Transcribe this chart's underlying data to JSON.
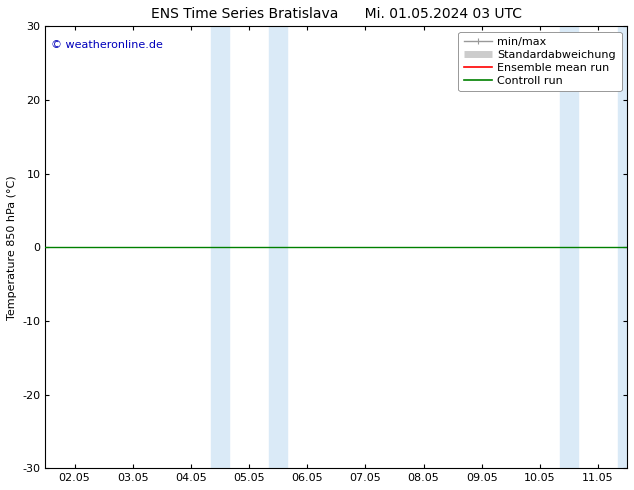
{
  "title_left": "ENS Time Series Bratislava",
  "title_right": "Mi. 01.05.2024 03 UTC",
  "ylabel": "Temperature 850 hPa (°C)",
  "copyright": "© weatheronline.de",
  "ylim": [
    -30,
    30
  ],
  "yticks": [
    -30,
    -20,
    -10,
    0,
    10,
    20,
    30
  ],
  "x_labels": [
    "02.05",
    "03.05",
    "04.05",
    "05.05",
    "06.05",
    "07.05",
    "08.05",
    "09.05",
    "10.05",
    "11.05"
  ],
  "x_values": [
    0,
    1,
    2,
    3,
    4,
    5,
    6,
    7,
    8,
    9
  ],
  "shade_bands": [
    {
      "xmin": 2.35,
      "xmax": 2.65,
      "color": "#daeaf7"
    },
    {
      "xmin": 3.35,
      "xmax": 3.65,
      "color": "#daeaf7"
    },
    {
      "xmin": 8.35,
      "xmax": 8.65,
      "color": "#daeaf7"
    },
    {
      "xmin": 9.35,
      "xmax": 9.65,
      "color": "#daeaf7"
    }
  ],
  "zero_line_color": "#000000",
  "green_line_color": "#008000",
  "background_color": "#ffffff",
  "plot_bg_color": "#ffffff",
  "border_color": "#000000",
  "legend_entries": [
    {
      "label": "min/max",
      "color": "#999999",
      "lw": 1.0
    },
    {
      "label": "Standardabweichung",
      "color": "#cccccc",
      "lw": 5
    },
    {
      "label": "Ensemble mean run",
      "color": "#ff0000",
      "lw": 1.2
    },
    {
      "label": "Controll run",
      "color": "#008000",
      "lw": 1.2
    }
  ],
  "title_fontsize": 10,
  "label_fontsize": 8,
  "tick_fontsize": 8,
  "copyright_fontsize": 8,
  "copyright_color": "#0000bb"
}
